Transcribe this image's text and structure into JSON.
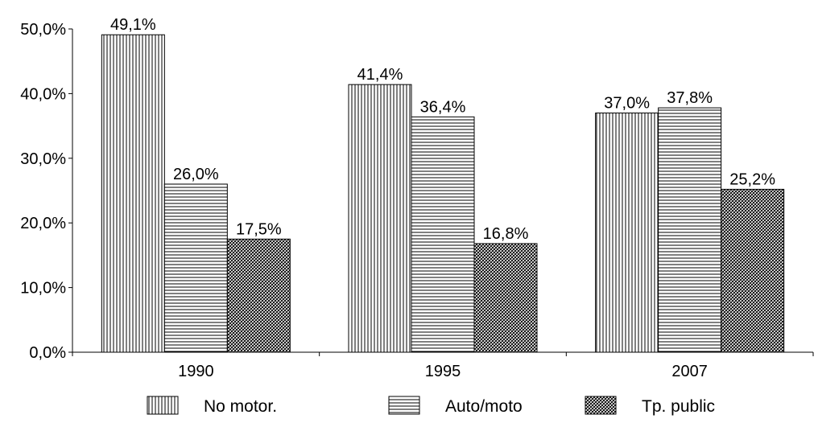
{
  "chart_data": {
    "type": "bar",
    "categories": [
      "1990",
      "1995",
      "2007"
    ],
    "series": [
      {
        "name": "No motor.",
        "values": [
          49.1,
          41.4,
          37.0
        ],
        "labels": [
          "49,1%",
          "41,4%",
          "37,0%"
        ],
        "pattern": "vertical-lines"
      },
      {
        "name": "Auto/moto",
        "values": [
          26.0,
          36.4,
          37.8
        ],
        "labels": [
          "26,0%",
          "36,4%",
          "37,8%"
        ],
        "pattern": "horizontal-lines"
      },
      {
        "name": "Tp. public",
        "values": [
          17.5,
          16.8,
          25.2
        ],
        "labels": [
          "17,5%",
          "16,8%",
          "25,2%"
        ],
        "pattern": "crosshatch"
      }
    ],
    "y_ticks": [
      0,
      10,
      20,
      30,
      40,
      50
    ],
    "y_tick_labels": [
      "0,0%",
      "10,0%",
      "20,0%",
      "30,0%",
      "40,0%",
      "50,0%"
    ],
    "ylim": [
      0,
      50
    ],
    "title": "",
    "xlabel": "",
    "ylabel": "",
    "grid": false,
    "legend_position": "bottom"
  }
}
